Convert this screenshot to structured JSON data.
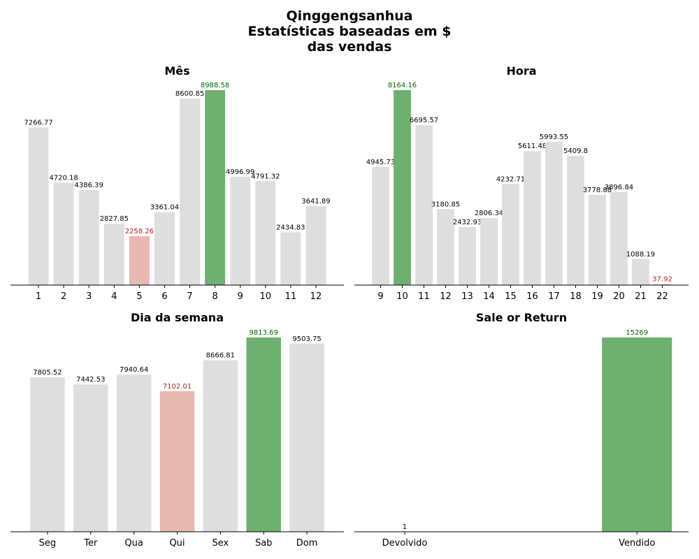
{
  "page": {
    "title_lines": [
      "Qinggengsanhua",
      "Estatísticas baseadas em $",
      "das vendas"
    ]
  },
  "colors": {
    "default_bar": "#dedede",
    "max_bar": "#6db06f",
    "min_bar": "#e8b9b1",
    "max_label": "#006400",
    "min_label": "#b22222",
    "default_label": "#000000"
  },
  "chart_data": [
    {
      "id": "mes",
      "type": "bar",
      "title": "Mês",
      "categories": [
        "1",
        "2",
        "3",
        "4",
        "5",
        "6",
        "7",
        "8",
        "9",
        "10",
        "11",
        "12"
      ],
      "values": [
        7266.77,
        4720.18,
        4386.39,
        2827.85,
        2258.26,
        3361.04,
        8600.85,
        8988.58,
        4996.99,
        4791.32,
        2434.83,
        3641.89
      ],
      "highlight_max": true,
      "highlight_min": true,
      "ylim": [
        0,
        8988.58
      ],
      "grid": false,
      "legend": "none"
    },
    {
      "id": "hora",
      "type": "bar",
      "title": "Hora",
      "categories": [
        "9",
        "10",
        "11",
        "12",
        "13",
        "14",
        "15",
        "16",
        "17",
        "18",
        "19",
        "20",
        "21",
        "22"
      ],
      "values": [
        4945.73,
        8164.16,
        6695.57,
        3180.85,
        2432.93,
        2806.34,
        4232.71,
        5611.48,
        5993.55,
        5409.8,
        3778.88,
        3896.84,
        1088.19,
        37.92
      ],
      "highlight_max": true,
      "highlight_min": true,
      "ylim": [
        0,
        8164.16
      ],
      "grid": false,
      "legend": "none"
    },
    {
      "id": "dia",
      "type": "bar",
      "title": "Dia da semana",
      "categories": [
        "Seg",
        "Ter",
        "Qua",
        "Qui",
        "Sex",
        "Sab",
        "Dom"
      ],
      "values": [
        7805.52,
        7442.53,
        7940.64,
        7102.01,
        8666.81,
        9813.69,
        9503.75
      ],
      "highlight_max": true,
      "highlight_min": true,
      "ylim": [
        0,
        9813.69
      ],
      "grid": false,
      "legend": "none"
    },
    {
      "id": "sale",
      "type": "bar",
      "title": "Sale or Return",
      "categories": [
        "Devolvido",
        "Vendido"
      ],
      "values": [
        1,
        15269
      ],
      "highlight_max": true,
      "highlight_min": false,
      "ylim": [
        0,
        15269
      ],
      "grid": false,
      "legend": "none"
    }
  ]
}
